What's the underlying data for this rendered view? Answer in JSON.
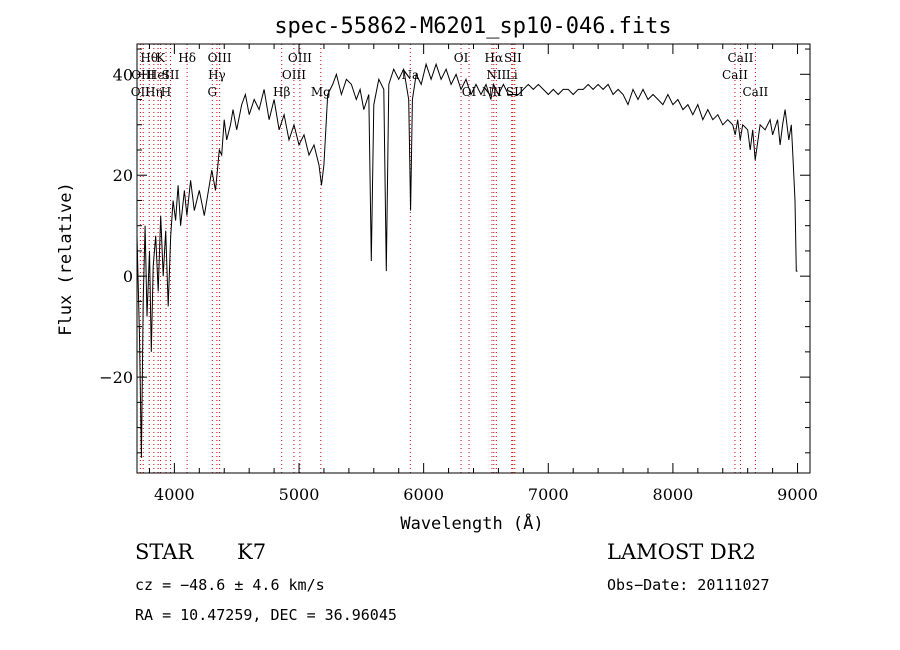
{
  "chart_data": {
    "type": "line",
    "title": "spec-55862-M6201_sp10-046.fits",
    "xlabel": "Wavelength (Å)",
    "ylabel": "Flux (relative)",
    "xlim": [
      3700,
      9100
    ],
    "ylim": [
      -39,
      46
    ],
    "xticks": [
      4000,
      5000,
      6000,
      7000,
      8000,
      9000
    ],
    "yticks": [
      -20,
      0,
      20,
      40
    ],
    "grid": false,
    "line_color": "#000000",
    "marker_color": "#cc0000",
    "series": [
      {
        "values": [
          [
            3700,
            8
          ],
          [
            3720,
            -12
          ],
          [
            3735,
            -36
          ],
          [
            3750,
            -5
          ],
          [
            3765,
            10
          ],
          [
            3780,
            -8
          ],
          [
            3800,
            5
          ],
          [
            3815,
            -15
          ],
          [
            3830,
            2
          ],
          [
            3850,
            8
          ],
          [
            3870,
            -3
          ],
          [
            3890,
            12
          ],
          [
            3910,
            0
          ],
          [
            3930,
            9
          ],
          [
            3950,
            -6
          ],
          [
            3970,
            8
          ],
          [
            3990,
            15
          ],
          [
            4010,
            11
          ],
          [
            4030,
            18
          ],
          [
            4050,
            10
          ],
          [
            4080,
            17
          ],
          [
            4100,
            12
          ],
          [
            4130,
            19
          ],
          [
            4160,
            13
          ],
          [
            4200,
            17
          ],
          [
            4240,
            12
          ],
          [
            4280,
            18
          ],
          [
            4300,
            21
          ],
          [
            4330,
            17
          ],
          [
            4360,
            25
          ],
          [
            4380,
            24
          ],
          [
            4400,
            31
          ],
          [
            4420,
            27
          ],
          [
            4450,
            30
          ],
          [
            4470,
            33
          ],
          [
            4500,
            29
          ],
          [
            4540,
            34
          ],
          [
            4570,
            36
          ],
          [
            4600,
            32
          ],
          [
            4640,
            35
          ],
          [
            4680,
            33
          ],
          [
            4720,
            37
          ],
          [
            4760,
            31
          ],
          [
            4800,
            35
          ],
          [
            4840,
            29
          ],
          [
            4880,
            32
          ],
          [
            4920,
            27
          ],
          [
            4960,
            30
          ],
          [
            5000,
            26
          ],
          [
            5040,
            28
          ],
          [
            5080,
            24
          ],
          [
            5120,
            26
          ],
          [
            5160,
            22
          ],
          [
            5180,
            18
          ],
          [
            5200,
            22
          ],
          [
            5230,
            36
          ],
          [
            5270,
            38
          ],
          [
            5300,
            40
          ],
          [
            5340,
            36
          ],
          [
            5380,
            39
          ],
          [
            5420,
            38
          ],
          [
            5460,
            35
          ],
          [
            5490,
            37
          ],
          [
            5520,
            33
          ],
          [
            5560,
            36
          ],
          [
            5580,
            3
          ],
          [
            5600,
            34
          ],
          [
            5640,
            39
          ],
          [
            5680,
            37
          ],
          [
            5700,
            1
          ],
          [
            5720,
            38
          ],
          [
            5760,
            41
          ],
          [
            5800,
            39
          ],
          [
            5840,
            41
          ],
          [
            5860,
            38
          ],
          [
            5880,
            35
          ],
          [
            5895,
            13
          ],
          [
            5910,
            35
          ],
          [
            5940,
            40
          ],
          [
            5980,
            38
          ],
          [
            6020,
            42
          ],
          [
            6060,
            39
          ],
          [
            6100,
            42
          ],
          [
            6140,
            39
          ],
          [
            6180,
            41
          ],
          [
            6220,
            38
          ],
          [
            6260,
            40
          ],
          [
            6300,
            37
          ],
          [
            6340,
            39
          ],
          [
            6380,
            36
          ],
          [
            6420,
            38
          ],
          [
            6460,
            36
          ],
          [
            6500,
            38
          ],
          [
            6540,
            35
          ],
          [
            6560,
            38
          ],
          [
            6600,
            36
          ],
          [
            6640,
            38
          ],
          [
            6680,
            36
          ],
          [
            6720,
            36
          ],
          [
            6760,
            36
          ],
          [
            6800,
            37
          ],
          [
            6840,
            38
          ],
          [
            6880,
            37
          ],
          [
            6920,
            38
          ],
          [
            6960,
            37
          ],
          [
            7000,
            36
          ],
          [
            7040,
            37
          ],
          [
            7080,
            36
          ],
          [
            7120,
            37
          ],
          [
            7160,
            37
          ],
          [
            7200,
            36
          ],
          [
            7240,
            37
          ],
          [
            7280,
            37
          ],
          [
            7320,
            38
          ],
          [
            7360,
            37
          ],
          [
            7400,
            38
          ],
          [
            7440,
            37
          ],
          [
            7480,
            38
          ],
          [
            7520,
            36
          ],
          [
            7560,
            37
          ],
          [
            7600,
            36
          ],
          [
            7640,
            34
          ],
          [
            7680,
            37
          ],
          [
            7720,
            35
          ],
          [
            7760,
            37
          ],
          [
            7800,
            35
          ],
          [
            7840,
            36
          ],
          [
            7880,
            35
          ],
          [
            7920,
            34
          ],
          [
            7960,
            36
          ],
          [
            8000,
            34
          ],
          [
            8040,
            35
          ],
          [
            8080,
            33
          ],
          [
            8120,
            34
          ],
          [
            8160,
            32
          ],
          [
            8200,
            34
          ],
          [
            8240,
            31
          ],
          [
            8280,
            33
          ],
          [
            8320,
            31
          ],
          [
            8360,
            32
          ],
          [
            8400,
            30
          ],
          [
            8440,
            31
          ],
          [
            8480,
            30
          ],
          [
            8500,
            28
          ],
          [
            8520,
            31
          ],
          [
            8540,
            27
          ],
          [
            8560,
            30
          ],
          [
            8600,
            29
          ],
          [
            8620,
            25
          ],
          [
            8640,
            29
          ],
          [
            8660,
            23
          ],
          [
            8700,
            30
          ],
          [
            8740,
            29
          ],
          [
            8780,
            31
          ],
          [
            8800,
            28
          ],
          [
            8840,
            31
          ],
          [
            8860,
            26
          ],
          [
            8880,
            30
          ],
          [
            8900,
            33
          ],
          [
            8930,
            27
          ],
          [
            8950,
            30
          ],
          [
            8960,
            25
          ],
          [
            8980,
            15
          ],
          [
            8990,
            1
          ],
          [
            9000,
            1
          ]
        ]
      }
    ],
    "line_markers": [
      {
        "wavelength": 3727,
        "label": "OII",
        "row": 3
      },
      {
        "wavelength": 3750,
        "label": "OIII",
        "row": 2
      },
      {
        "wavelength": 3798,
        "label": "Hθ",
        "row": 1
      },
      {
        "wavelength": 3835,
        "label": "Hη",
        "row": 3
      },
      {
        "wavelength": 3869,
        "label": "HeI",
        "row": 2
      },
      {
        "wavelength": 3889,
        "label": "K",
        "row": 1
      },
      {
        "wavelength": 3933,
        "label": "H",
        "row": 3
      },
      {
        "wavelength": 3969,
        "label": "SII",
        "row": 2
      },
      {
        "wavelength": 4102,
        "label": "Hδ",
        "row": 1
      },
      {
        "wavelength": 4304,
        "label": "G",
        "row": 3
      },
      {
        "wavelength": 4341,
        "label": "Hγ",
        "row": 2
      },
      {
        "wavelength": 4363,
        "label": "OIII",
        "row": 1
      },
      {
        "wavelength": 4861,
        "label": "Hβ",
        "row": 3
      },
      {
        "wavelength": 4959,
        "label": "OIII",
        "row": 2
      },
      {
        "wavelength": 5007,
        "label": "OIII",
        "row": 1
      },
      {
        "wavelength": 5175,
        "label": "Mg",
        "row": 3
      },
      {
        "wavelength": 5893,
        "label": "Na",
        "row": 2
      },
      {
        "wavelength": 6300,
        "label": "OI",
        "row": 1
      },
      {
        "wavelength": 6364,
        "label": "OI",
        "row": 3
      },
      {
        "wavelength": 6548,
        "label": "NII",
        "row": 3
      },
      {
        "wavelength": 6563,
        "label": "Hα",
        "row": 1
      },
      {
        "wavelength": 6583,
        "label": "NII",
        "row": 2
      },
      {
        "wavelength": 6707,
        "label": "Li",
        "row": 2
      },
      {
        "wavelength": 6716,
        "label": "SII",
        "row": 1
      },
      {
        "wavelength": 6731,
        "label": "SII",
        "row": 3
      },
      {
        "wavelength": 8498,
        "label": "CaII",
        "row": 2
      },
      {
        "wavelength": 8542,
        "label": "CaII",
        "row": 1
      },
      {
        "wavelength": 8662,
        "label": "CaII",
        "row": 3
      }
    ]
  },
  "info": {
    "class_label": "STAR",
    "subclass_label": "K7",
    "survey_label": "LAMOST DR2",
    "redshift_line": "cz = −48.6 ± 4.6 km/s",
    "obs_date_line": "Obs−Date: 20111027",
    "coords_line": "RA =  10.47259, DEC =  36.96045"
  }
}
